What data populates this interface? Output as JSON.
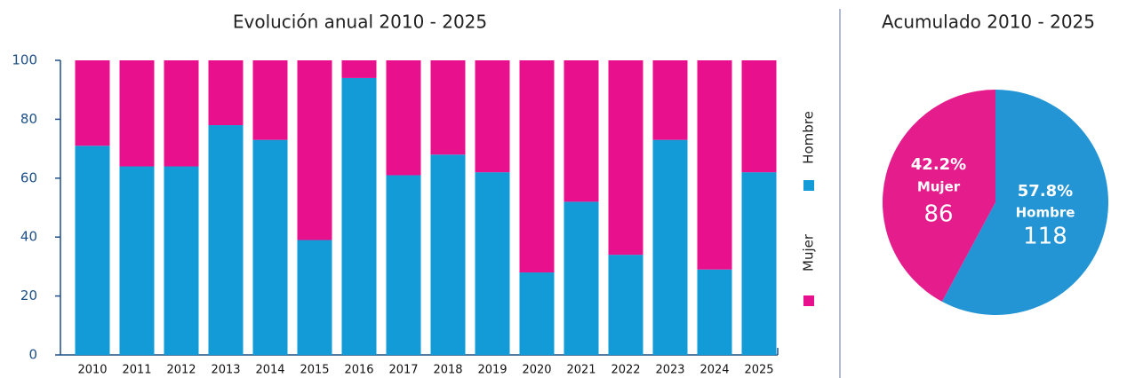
{
  "chart_data": [
    {
      "type": "stacked_bar",
      "title": "Evolución anual 2010 - 2025",
      "categories": [
        "2010",
        "2011",
        "2012",
        "2013",
        "2014",
        "2015",
        "2016",
        "2017",
        "2018",
        "2019",
        "2020",
        "2021",
        "2022",
        "2023",
        "2024",
        "2025"
      ],
      "series": [
        {
          "name": "Hombre",
          "color": "#139bd8",
          "values": [
            71,
            64,
            64,
            78,
            73,
            39,
            94,
            61,
            68,
            62,
            28,
            52,
            34,
            73,
            29,
            62
          ]
        },
        {
          "name": "Mujer",
          "color": "#e8108c",
          "values": [
            29,
            36,
            36,
            22,
            27,
            61,
            6,
            39,
            32,
            38,
            72,
            48,
            66,
            27,
            71,
            38
          ]
        }
      ],
      "ylim": [
        0,
        100
      ],
      "yticks": [
        0,
        20,
        40,
        60,
        80,
        100
      ],
      "legend": "right"
    },
    {
      "type": "pie",
      "title": "Acumulado 2010 - 2025",
      "categories": [
        "Hombre",
        "Mujer"
      ],
      "values": [
        118,
        86
      ],
      "colors": [
        "#2394d4",
        "#e41c8c"
      ],
      "percentages": [
        57.8,
        42.2
      ],
      "percentage_labels": [
        "57.8%",
        "42.2%"
      ]
    }
  ]
}
